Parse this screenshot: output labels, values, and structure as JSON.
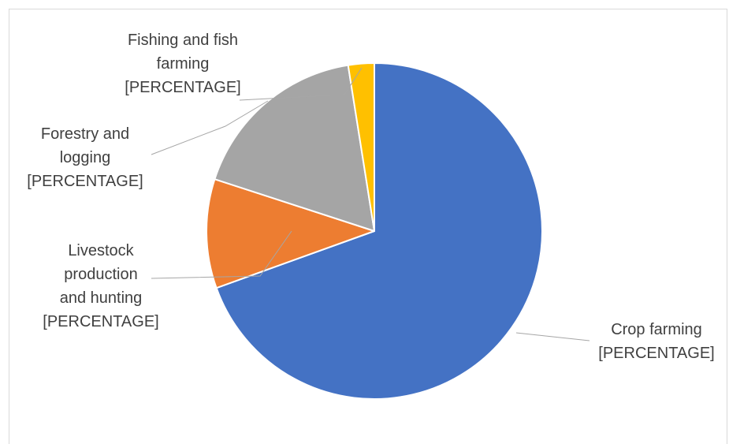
{
  "chart_data": {
    "type": "pie",
    "title": "",
    "categories": [
      "Crop farming",
      "Livestock production and hunting",
      "Forestry and logging",
      "Fishing and fish farming"
    ],
    "values": [
      69.5,
      10.5,
      17.5,
      2.5
    ],
    "value_label": "[PERCENTAGE]",
    "colors": [
      "#4472C4",
      "#ED7D31",
      "#A5A5A5",
      "#FFC000"
    ],
    "start_angle_deg": 0,
    "direction": "clockwise",
    "legend": "none",
    "labels": [
      {
        "lines": [
          "Crop farming",
          "[PERCENTAGE]"
        ]
      },
      {
        "lines": [
          "Livestock",
          "production",
          "and hunting",
          "[PERCENTAGE]"
        ]
      },
      {
        "lines": [
          "Forestry and",
          "logging",
          "[PERCENTAGE]"
        ]
      },
      {
        "lines": [
          "Fishing and fish",
          "farming",
          "[PERCENTAGE]"
        ]
      }
    ]
  }
}
